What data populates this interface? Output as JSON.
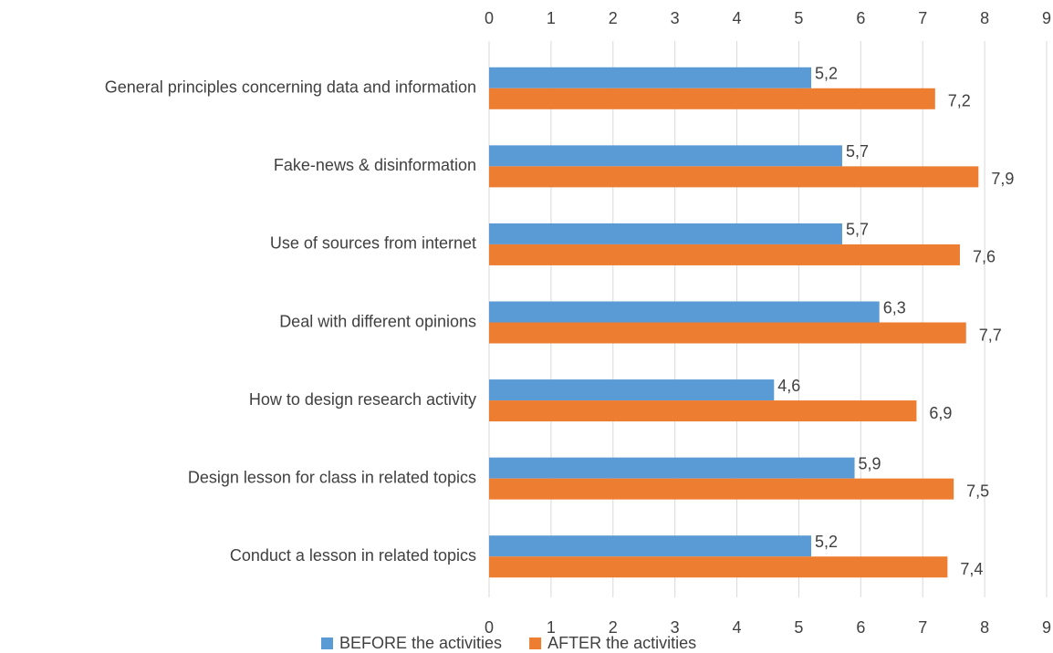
{
  "chart_data": {
    "type": "hbar",
    "categories": [
      "General principles concerning data and information",
      "Fake-news & disinformation",
      "Use of sources from internet",
      "Deal with different opinions",
      "How to design research activity",
      "Design lesson for class in related topics",
      "Conduct a lesson in related topics"
    ],
    "series": [
      {
        "name": "BEFORE the activities",
        "color": "#5b9bd5",
        "values": [
          5.2,
          5.7,
          5.7,
          6.3,
          4.6,
          5.9,
          5.2
        ],
        "value_labels": [
          "5,2",
          "5,7",
          "5,7",
          "6,3",
          "4,6",
          "5,9",
          "5,2"
        ]
      },
      {
        "name": "AFTER the activities",
        "color": "#ed7d31",
        "values": [
          7.2,
          7.9,
          7.6,
          7.7,
          6.9,
          7.5,
          7.4
        ],
        "value_labels": [
          "7,2",
          "7,9",
          "7,6",
          "7,7",
          "6,9",
          "7,5",
          "7,4"
        ]
      }
    ],
    "xlim": [
      0,
      9
    ],
    "xticks": [
      0,
      1,
      2,
      3,
      4,
      5,
      6,
      7,
      8,
      9
    ],
    "grid": true,
    "legend": "bottom"
  }
}
